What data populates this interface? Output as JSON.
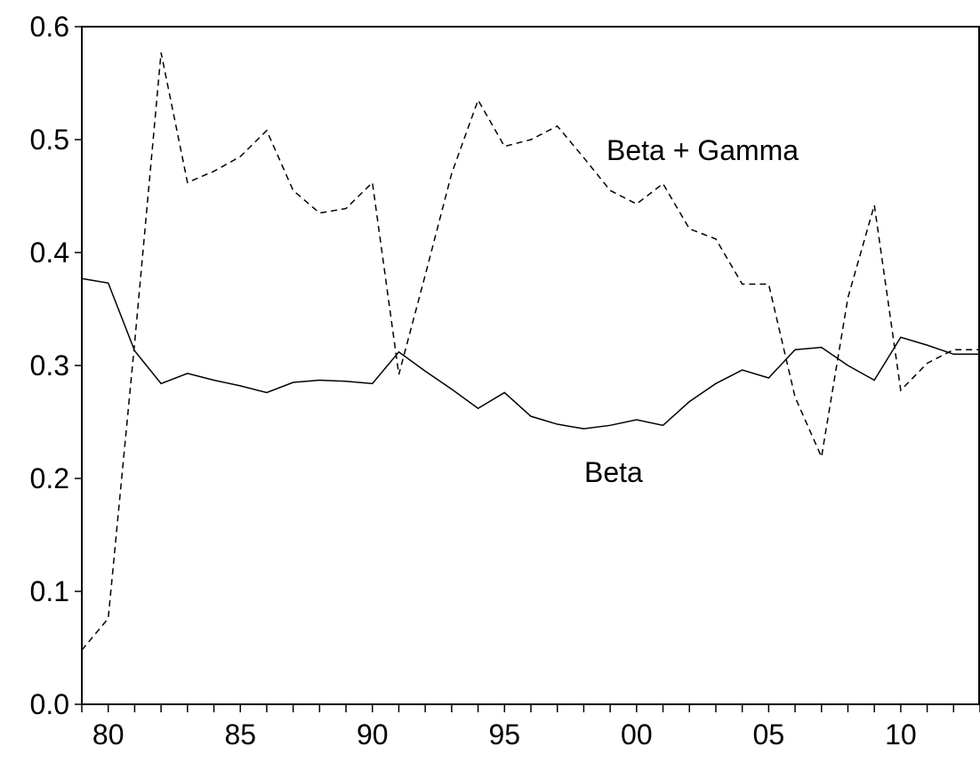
{
  "chart_data": {
    "type": "line",
    "categories": [
      null,
      "80",
      null,
      null,
      null,
      null,
      "85",
      null,
      null,
      null,
      null,
      "90",
      null,
      null,
      null,
      null,
      "95",
      null,
      null,
      null,
      null,
      "00",
      null,
      null,
      null,
      null,
      "05",
      null,
      null,
      null,
      null,
      "10",
      null,
      null,
      null
    ],
    "series": [
      {
        "name": "Beta",
        "color": "#000000",
        "dash": "solid",
        "values": [
          0.377,
          0.373,
          0.313,
          0.284,
          0.293,
          0.287,
          0.282,
          0.276,
          0.285,
          0.287,
          0.286,
          0.284,
          0.312,
          0.295,
          0.279,
          0.262,
          0.276,
          0.255,
          0.248,
          0.244,
          0.247,
          0.252,
          0.247,
          0.268,
          0.284,
          0.296,
          0.289,
          0.314,
          0.316,
          0.3,
          0.287,
          0.325,
          0.318,
          0.31,
          0.31
        ]
      },
      {
        "name": "Beta + Gamma",
        "color": "#000000",
        "dash": "dashed",
        "values": [
          0.048,
          0.076,
          0.32,
          0.577,
          0.462,
          0.472,
          0.485,
          0.508,
          0.455,
          0.435,
          0.439,
          0.462,
          0.292,
          0.38,
          0.47,
          0.535,
          0.494,
          0.5,
          0.512,
          0.484,
          0.455,
          0.443,
          0.461,
          0.421,
          0.412,
          0.372,
          0.372,
          0.272,
          0.219,
          0.36,
          0.442,
          0.278,
          0.302,
          0.314,
          0.314
        ]
      }
    ],
    "ylim": [
      0,
      0.6
    ],
    "yticks": [
      {
        "value": 0,
        "label": "0.0"
      },
      {
        "value": 0.1,
        "label": "0.1"
      },
      {
        "value": 0.2,
        "label": "0.2"
      },
      {
        "value": 0.3,
        "label": "0.3"
      },
      {
        "value": 0.4,
        "label": "0.4"
      },
      {
        "value": 0.5,
        "label": "0.5"
      },
      {
        "value": 0.6,
        "label": "0.6"
      }
    ],
    "grid": false
  }
}
